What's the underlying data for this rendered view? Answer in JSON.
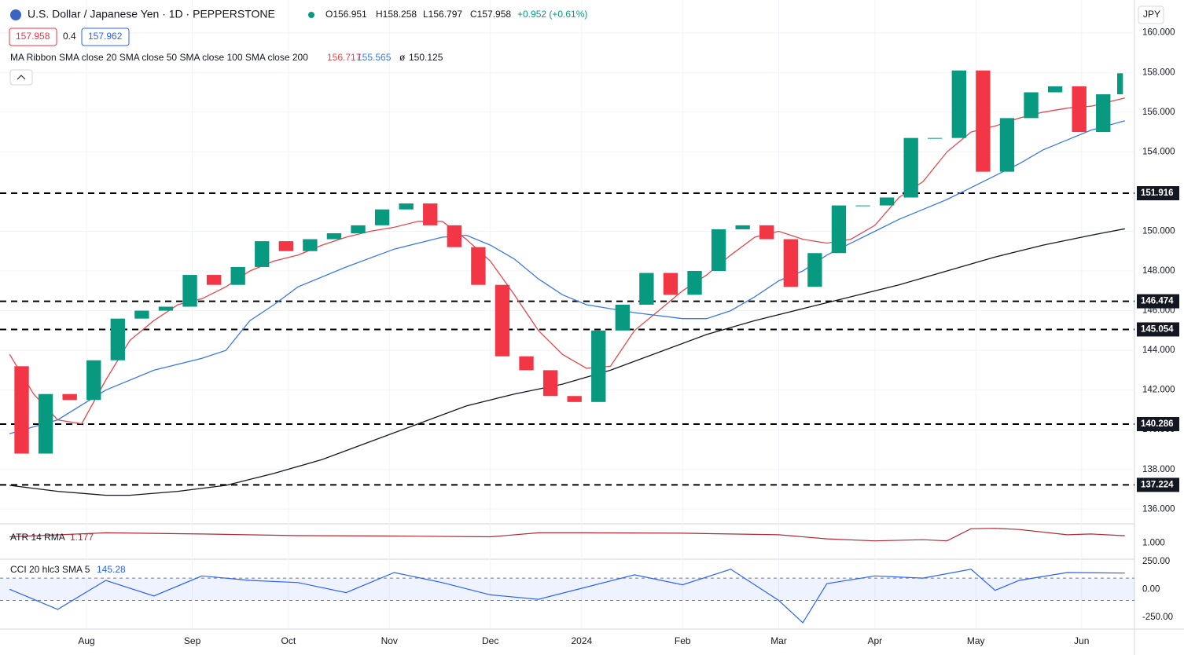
{
  "chart_data": {
    "type": "candlestick",
    "title": "U.S. Dollar / Japanese Yen · 1D · PEPPERSTONE",
    "ohlc_text": {
      "open": "O156.951",
      "high": "H158.258",
      "low": "L156.797",
      "close": "C157.958",
      "change": "+0.952 (+0.61%)"
    },
    "bid": "157.958",
    "spread": "0.4",
    "ask": "157.962",
    "currency": "JPY",
    "ma_legend": "MA Ribbon SMA close 20 SMA close 50 SMA close 100 SMA close 200",
    "ma_empty": "ø",
    "up_color": "#089981",
    "down_color": "#f23645",
    "xlim": [
      -2,
      234
    ],
    "xticks": [
      {
        "value": 16,
        "label": "Aug"
      },
      {
        "value": 38,
        "label": "Sep"
      },
      {
        "value": 58,
        "label": "Oct"
      },
      {
        "value": 79,
        "label": "Nov"
      },
      {
        "value": 100,
        "label": "Dec"
      },
      {
        "value": 119,
        "label": "2024"
      },
      {
        "value": 140,
        "label": "Feb"
      },
      {
        "value": 160,
        "label": "Mar"
      },
      {
        "value": 180,
        "label": "Apr"
      },
      {
        "value": 201,
        "label": "May"
      },
      {
        "value": 223,
        "label": "Jun"
      }
    ],
    "ylim": [
      135.3,
      161.65
    ],
    "yticks": [
      {
        "value": 136,
        "label": "136.000"
      },
      {
        "value": 138,
        "label": "138.000"
      },
      {
        "value": 140,
        "label": "140.000"
      },
      {
        "value": 142,
        "label": "142.000"
      },
      {
        "value": 144,
        "label": "144.000"
      },
      {
        "value": 146,
        "label": "146.000"
      },
      {
        "value": 148,
        "label": "148.000"
      },
      {
        "value": 150,
        "label": "150.000"
      },
      {
        "value": 152,
        "label": "152.000"
      },
      {
        "value": 154,
        "label": "154.000"
      },
      {
        "value": 156,
        "label": "156.000"
      },
      {
        "value": 158,
        "label": "158.000"
      },
      {
        "value": 160,
        "label": "160.000"
      }
    ],
    "x": [
      0,
      5,
      10,
      15,
      20,
      25,
      30,
      35,
      40,
      45,
      50,
      55,
      60,
      65,
      70,
      75,
      80,
      85,
      90,
      95,
      100,
      105,
      110,
      115,
      120,
      125,
      130,
      135,
      140,
      145,
      150,
      155,
      160,
      165,
      170,
      175,
      180,
      185,
      190,
      195,
      200,
      205,
      210,
      215,
      220,
      225,
      230,
      232
    ],
    "close": [
      143.2,
      138.8,
      141.8,
      141.5,
      143.5,
      145.6,
      146.0,
      146.2,
      147.8,
      147.3,
      148.2,
      149.5,
      149.0,
      149.6,
      149.9,
      150.3,
      151.1,
      151.4,
      150.3,
      149.2,
      147.3,
      143.7,
      143.0,
      141.7,
      141.4,
      145.0,
      146.3,
      147.9,
      146.8,
      148.0,
      150.1,
      150.3,
      149.6,
      147.2,
      148.9,
      151.3,
      151.3,
      151.7,
      154.7,
      154.7,
      158.1,
      153.0,
      155.7,
      157.0,
      157.3,
      155.0,
      156.9,
      157.958
    ],
    "levels": [
      {
        "value": 151.916,
        "label": "151.916"
      },
      {
        "value": 146.474,
        "label": "146.474"
      },
      {
        "value": 145.054,
        "label": "145.054"
      },
      {
        "value": 140.286,
        "label": "140.286"
      },
      {
        "value": 137.224,
        "label": "137.224"
      }
    ],
    "series": [
      {
        "color": "#e5484d",
        "value_label": "156.717",
        "x": [
          0,
          5,
          10,
          15,
          20,
          25,
          30,
          35,
          40,
          45,
          50,
          55,
          60,
          65,
          70,
          75,
          80,
          85,
          90,
          95,
          100,
          105,
          110,
          115,
          120,
          125,
          130,
          135,
          140,
          145,
          150,
          155,
          160,
          165,
          170,
          175,
          180,
          185,
          190,
          195,
          200,
          205,
          210,
          215,
          220,
          225,
          232
        ],
        "values": [
          143.8,
          141.8,
          140.5,
          140.3,
          142.5,
          144.5,
          145.5,
          146.3,
          146.6,
          147.2,
          148.0,
          148.5,
          148.8,
          149.3,
          149.7,
          150.0,
          150.2,
          150.5,
          150.5,
          149.6,
          148.5,
          146.8,
          145.0,
          143.8,
          143.1,
          143.2,
          145.0,
          146.0,
          147.0,
          147.8,
          148.8,
          149.7,
          150.0,
          149.6,
          149.4,
          149.6,
          150.3,
          151.7,
          152.5,
          154.0,
          155.0,
          155.3,
          155.7,
          156.0,
          156.2,
          156.3,
          156.717
        ]
      },
      {
        "color": "#3b78e7",
        "value_label": "155.565",
        "x": [
          0,
          10,
          20,
          30,
          40,
          45,
          50,
          55,
          60,
          70,
          80,
          90,
          95,
          100,
          105,
          110,
          115,
          120,
          130,
          140,
          145,
          150,
          155,
          160,
          165,
          170,
          175,
          180,
          185,
          190,
          195,
          200,
          205,
          210,
          215,
          220,
          225,
          232
        ],
        "values": [
          139.8,
          140.5,
          142.0,
          143.0,
          143.6,
          144.0,
          145.5,
          146.3,
          147.2,
          148.2,
          149.1,
          149.7,
          149.8,
          149.3,
          148.6,
          147.6,
          146.8,
          146.3,
          145.9,
          145.6,
          145.6,
          146.0,
          146.7,
          147.5,
          148.0,
          148.8,
          149.4,
          150.0,
          150.6,
          151.1,
          151.6,
          152.2,
          152.8,
          153.4,
          154.1,
          154.6,
          155.1,
          155.565
        ]
      },
      {
        "color": "#131722",
        "value_label": "150.125",
        "x": [
          0,
          10,
          20,
          25,
          35,
          45,
          55,
          65,
          75,
          85,
          95,
          105,
          115,
          125,
          135,
          145,
          155,
          165,
          175,
          185,
          195,
          205,
          215,
          225,
          232
        ],
        "values": [
          137.2,
          136.9,
          136.7,
          136.7,
          136.9,
          137.2,
          137.8,
          138.5,
          139.4,
          140.3,
          141.2,
          141.8,
          142.3,
          143.0,
          143.9,
          144.8,
          145.5,
          146.1,
          146.7,
          147.3,
          148.0,
          148.7,
          149.3,
          149.8,
          150.125
        ]
      }
    ],
    "atr": {
      "name": "ATR 14 RMA",
      "value_label": "1.177",
      "color": "#b22833",
      "ylim": [
        0.6,
        1.45
      ],
      "yticks": [
        {
          "value": 1,
          "label": "1.000"
        }
      ],
      "x": [
        0,
        20,
        40,
        60,
        80,
        100,
        110,
        120,
        140,
        160,
        170,
        180,
        190,
        195,
        200,
        205,
        210,
        220,
        225,
        232
      ],
      "values": [
        1.15,
        1.25,
        1.22,
        1.18,
        1.17,
        1.15,
        1.25,
        1.25,
        1.24,
        1.2,
        1.1,
        1.05,
        1.08,
        1.05,
        1.35,
        1.36,
        1.33,
        1.2,
        1.22,
        1.177
      ]
    },
    "cci": {
      "name": "CCI 20 hlc3 SMA 5",
      "value_label": "145.28",
      "color": "#2962ff",
      "ylim": [
        -350,
        270
      ],
      "bands": [
        100,
        -100
      ],
      "yticks": [
        {
          "value": 250,
          "label": "250.00"
        },
        {
          "value": 0,
          "label": "0.00"
        },
        {
          "value": -250,
          "label": "-250.00"
        }
      ],
      "x": [
        0,
        10,
        20,
        30,
        40,
        50,
        60,
        70,
        80,
        90,
        100,
        110,
        120,
        130,
        140,
        150,
        160,
        165,
        170,
        180,
        190,
        200,
        205,
        210,
        220,
        232
      ],
      "values": [
        0,
        -180,
        80,
        -60,
        120,
        80,
        60,
        -30,
        150,
        60,
        -50,
        -90,
        20,
        130,
        40,
        180,
        -100,
        -300,
        50,
        120,
        100,
        180,
        -10,
        80,
        150,
        145.28
      ]
    }
  }
}
